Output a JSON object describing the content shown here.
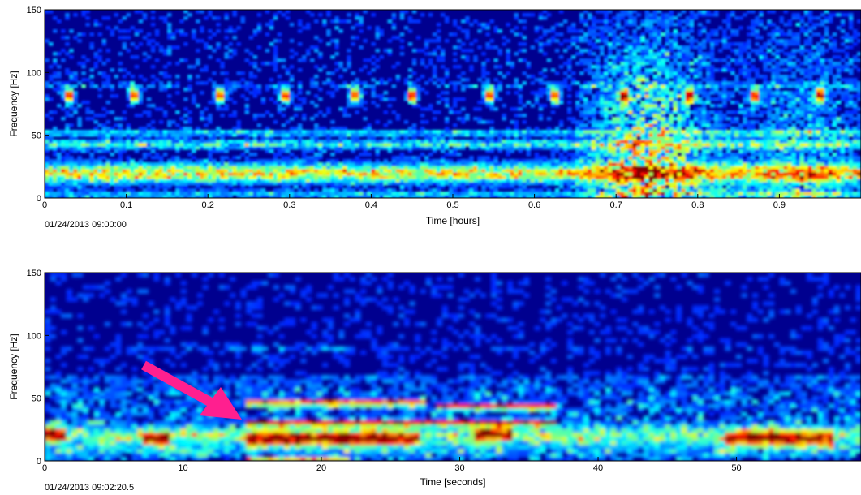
{
  "chart_data": [
    {
      "type": "heatmap",
      "title": "",
      "xlabel": "Time [hours]",
      "ylabel": "Frequency [Hz]",
      "xlim": [
        0,
        1
      ],
      "ylim": [
        0,
        150
      ],
      "xticks": [
        0,
        0.1,
        0.2,
        0.3,
        0.4,
        0.5,
        0.6,
        0.7,
        0.8,
        0.9
      ],
      "yticks": [
        0,
        50,
        100,
        150
      ],
      "start_timestamp": "01/24/2013 09:00:00",
      "colormap": "jet",
      "features": {
        "pulse_times": [
          0.03,
          0.11,
          0.215,
          0.295,
          0.38,
          0.45,
          0.545,
          0.625,
          0.71,
          0.79,
          0.87,
          0.95
        ],
        "pulse_frequency": 82,
        "bands_frequency": [
          20,
          43,
          52,
          90
        ],
        "broadband_burst_range": [
          0.65,
          1.0
        ]
      }
    },
    {
      "type": "heatmap",
      "title": "",
      "xlabel": "Time [seconds]",
      "ylabel": "Frequency [Hz]",
      "xlim": [
        0,
        59
      ],
      "ylim": [
        0,
        150
      ],
      "xticks": [
        0,
        10,
        20,
        30,
        40,
        50
      ],
      "yticks": [
        0,
        50,
        100,
        150
      ],
      "start_timestamp": "01/24/2013 09:02:20.5",
      "colormap": "jet",
      "features": {
        "tonal_lines": [
          {
            "t_start": 14.5,
            "t_end": 27.5,
            "f": 46
          },
          {
            "t_start": 28.5,
            "t_end": 37,
            "f": 43
          },
          {
            "t_start": 14.5,
            "t_end": 37,
            "f": 30
          },
          {
            "t_start": 14.5,
            "t_end": 22,
            "f": 0
          }
        ],
        "hot_blobs": [
          {
            "t": [
              0,
              1.5
            ],
            "f": 22
          },
          {
            "t": [
              7,
              9
            ],
            "f": 18
          },
          {
            "t": [
              14.5,
              27
            ],
            "f": 18
          },
          {
            "t": [
              31,
              34
            ],
            "f": 22
          },
          {
            "t": [
              49,
              57
            ],
            "f": 18
          }
        ],
        "annotation": "arrow pointing to onset of tonal lines near 14 s, 30 Hz"
      }
    }
  ],
  "colors": {
    "background": "#00008f",
    "arrow": "#ff1f8f"
  }
}
